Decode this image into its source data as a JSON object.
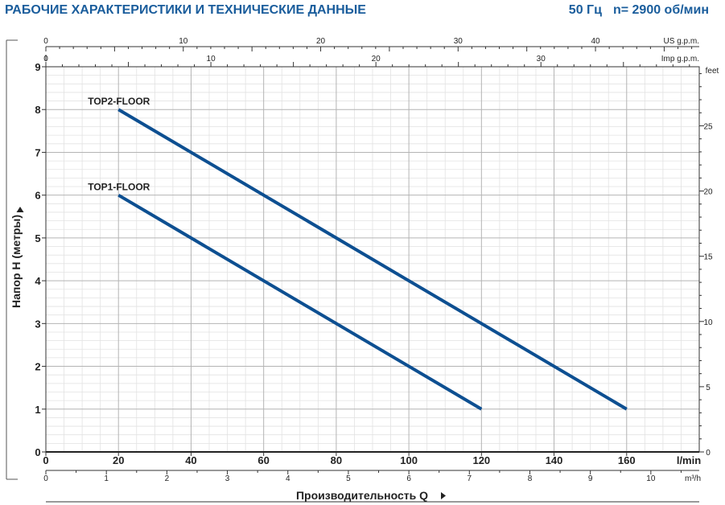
{
  "header": {
    "title": "РАБОЧИЕ ХАРАКТЕРИСТИКИ И ТЕХНИЧЕСКИЕ ДАННЫЕ",
    "frequency": "50 Гц",
    "speed": "n= 2900 об/мин"
  },
  "chart_data": {
    "type": "line",
    "xlabel": "Производительность Q",
    "ylabel": "Напор H (метры)",
    "xlim": [
      0,
      180
    ],
    "ylim": [
      0,
      9
    ],
    "x_unit": "l/min",
    "x_ticks": [
      0,
      20,
      40,
      60,
      80,
      100,
      120,
      140,
      160
    ],
    "y_ticks": [
      0,
      1,
      2,
      3,
      4,
      5,
      6,
      7,
      8,
      9
    ],
    "grid": true,
    "series": [
      {
        "name": "TOP2-FLOOR",
        "x": [
          20,
          160
        ],
        "y": [
          8,
          1
        ],
        "color": "#0d4f91"
      },
      {
        "name": "TOP1-FLOOR",
        "x": [
          20,
          120
        ],
        "y": [
          6,
          1
        ],
        "color": "#0d4f91"
      }
    ],
    "secondary_axes": {
      "us_gpm": {
        "label": "US g.p.m.",
        "ticks": [
          0,
          10,
          20,
          30,
          40
        ]
      },
      "imp_gpm": {
        "label": "Imp g.p.m.",
        "ticks": [
          0,
          10,
          20,
          30
        ]
      },
      "m3h": {
        "label": "m³/h",
        "ticks": [
          0,
          1,
          2,
          3,
          4,
          5,
          6,
          7,
          8,
          9,
          10
        ]
      },
      "feet": {
        "label": "feet",
        "ticks": [
          0,
          5,
          10,
          15,
          20,
          25
        ]
      }
    }
  }
}
